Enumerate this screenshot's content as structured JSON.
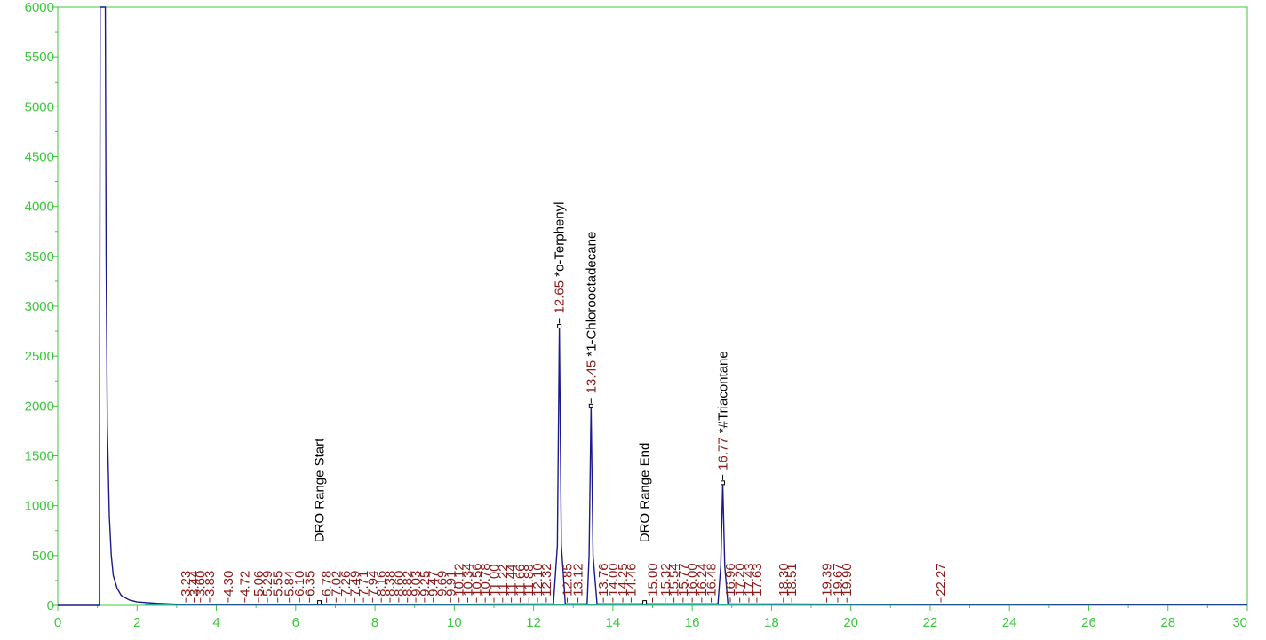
{
  "chart_data": {
    "type": "line",
    "title": "",
    "xlabel": "",
    "ylabel": "",
    "xlim": [
      0,
      30
    ],
    "ylim": [
      0,
      6000
    ],
    "x_ticks": [
      "0",
      "2",
      "4",
      "6",
      "8",
      "10",
      "12",
      "14",
      "16",
      "18",
      "20",
      "22",
      "24",
      "26",
      "28",
      "30"
    ],
    "y_ticks": [
      "0",
      "500",
      "1000",
      "1500",
      "2000",
      "2500",
      "3000",
      "3500",
      "4000",
      "4500",
      "5000",
      "5500",
      "6000"
    ],
    "grid": false,
    "colors": {
      "axis": "#3cc83c",
      "trace": "#1a1a8c",
      "baseline": "#20a8a0",
      "rt_label": "#8b1a1a",
      "name_label": "#000000"
    },
    "series": [
      {
        "values": [
          {
            "x": 0.0,
            "y": 0
          },
          {
            "x": 1.05,
            "y": 0
          },
          {
            "x": 1.07,
            "y": 6000
          },
          {
            "x": 1.2,
            "y": 6000
          },
          {
            "x": 1.22,
            "y": 3500
          },
          {
            "x": 1.25,
            "y": 1800
          },
          {
            "x": 1.3,
            "y": 900
          },
          {
            "x": 1.35,
            "y": 500
          },
          {
            "x": 1.4,
            "y": 300
          },
          {
            "x": 1.5,
            "y": 170
          },
          {
            "x": 1.6,
            "y": 100
          },
          {
            "x": 1.8,
            "y": 55
          },
          {
            "x": 2.0,
            "y": 35
          },
          {
            "x": 2.5,
            "y": 20
          },
          {
            "x": 3.0,
            "y": 12
          },
          {
            "x": 4.0,
            "y": 10
          },
          {
            "x": 6.0,
            "y": 10
          },
          {
            "x": 10.0,
            "y": 12
          },
          {
            "x": 12.5,
            "y": 15
          },
          {
            "x": 12.6,
            "y": 600
          },
          {
            "x": 12.65,
            "y": 2800
          },
          {
            "x": 12.7,
            "y": 600
          },
          {
            "x": 12.8,
            "y": 15
          },
          {
            "x": 13.35,
            "y": 15
          },
          {
            "x": 13.4,
            "y": 500
          },
          {
            "x": 13.45,
            "y": 2000
          },
          {
            "x": 13.5,
            "y": 500
          },
          {
            "x": 13.6,
            "y": 15
          },
          {
            "x": 16.65,
            "y": 15
          },
          {
            "x": 16.72,
            "y": 400
          },
          {
            "x": 16.77,
            "y": 1230
          },
          {
            "x": 16.82,
            "y": 400
          },
          {
            "x": 16.9,
            "y": 15
          },
          {
            "x": 20.0,
            "y": 12
          },
          {
            "x": 22.3,
            "y": 10
          },
          {
            "x": 30.0,
            "y": 8
          }
        ]
      }
    ],
    "named_peaks": [
      {
        "rt": "12.65",
        "x": 12.65,
        "y": 2800,
        "name": "*o-Terphenyl"
      },
      {
        "rt": "13.45",
        "x": 13.45,
        "y": 2000,
        "name": "*1-Chlorooctadecane"
      },
      {
        "rt": "16.77",
        "x": 16.77,
        "y": 1230,
        "name": "*#Triacontane"
      }
    ],
    "range_markers": [
      {
        "x": 6.6,
        "name": "DRO Range Start"
      },
      {
        "x": 14.8,
        "name": "DRO Range End"
      }
    ],
    "peak_labels": [
      {
        "x": 3.23,
        "rt": "3.23"
      },
      {
        "x": 3.44,
        "rt": "3.44"
      },
      {
        "x": 3.6,
        "rt": "3.60"
      },
      {
        "x": 3.83,
        "rt": "3.83"
      },
      {
        "x": 4.3,
        "rt": "4.30"
      },
      {
        "x": 4.72,
        "rt": "4.72"
      },
      {
        "x": 5.06,
        "rt": "5.06"
      },
      {
        "x": 5.29,
        "rt": "5.29"
      },
      {
        "x": 5.55,
        "rt": "5.55"
      },
      {
        "x": 5.84,
        "rt": "5.84"
      },
      {
        "x": 6.1,
        "rt": "6.10"
      },
      {
        "x": 6.35,
        "rt": "6.35"
      },
      {
        "x": 6.78,
        "rt": "6.78"
      },
      {
        "x": 7.02,
        "rt": "7.02"
      },
      {
        "x": 7.26,
        "rt": "7.26"
      },
      {
        "x": 7.49,
        "rt": "7.49"
      },
      {
        "x": 7.71,
        "rt": "7.71"
      },
      {
        "x": 7.94,
        "rt": "7.94"
      },
      {
        "x": 8.16,
        "rt": "8.16"
      },
      {
        "x": 8.38,
        "rt": "8.38"
      },
      {
        "x": 8.6,
        "rt": "8.60"
      },
      {
        "x": 8.82,
        "rt": "8.82"
      },
      {
        "x": 9.03,
        "rt": "9.03"
      },
      {
        "x": 9.25,
        "rt": "9.25"
      },
      {
        "x": 9.47,
        "rt": "9.47"
      },
      {
        "x": 9.69,
        "rt": "9.69"
      },
      {
        "x": 9.91,
        "rt": "9.91"
      },
      {
        "x": 10.12,
        "rt": "10.12"
      },
      {
        "x": 10.34,
        "rt": "10.34"
      },
      {
        "x": 10.56,
        "rt": "10.56"
      },
      {
        "x": 10.78,
        "rt": "10.78"
      },
      {
        "x": 11.0,
        "rt": "11.00"
      },
      {
        "x": 11.22,
        "rt": "11.22"
      },
      {
        "x": 11.44,
        "rt": "11.44"
      },
      {
        "x": 11.66,
        "rt": "11.66"
      },
      {
        "x": 11.88,
        "rt": "11.88"
      },
      {
        "x": 12.1,
        "rt": "12.10"
      },
      {
        "x": 12.32,
        "rt": "12.32"
      },
      {
        "x": 12.85,
        "rt": "12.85"
      },
      {
        "x": 13.12,
        "rt": "13.12"
      },
      {
        "x": 13.76,
        "rt": "13.76"
      },
      {
        "x": 14.0,
        "rt": "14.00"
      },
      {
        "x": 14.25,
        "rt": "14.25"
      },
      {
        "x": 14.46,
        "rt": "14.46"
      },
      {
        "x": 15.0,
        "rt": "15.00"
      },
      {
        "x": 15.32,
        "rt": "15.32"
      },
      {
        "x": 15.54,
        "rt": "15.54"
      },
      {
        "x": 15.77,
        "rt": "15.77"
      },
      {
        "x": 16.0,
        "rt": "16.00"
      },
      {
        "x": 16.24,
        "rt": "16.24"
      },
      {
        "x": 16.48,
        "rt": "16.48"
      },
      {
        "x": 16.96,
        "rt": "16.96"
      },
      {
        "x": 17.2,
        "rt": "17.20"
      },
      {
        "x": 17.43,
        "rt": "17.43"
      },
      {
        "x": 17.63,
        "rt": "17.63"
      },
      {
        "x": 18.3,
        "rt": "18.30"
      },
      {
        "x": 18.51,
        "rt": "18.51"
      },
      {
        "x": 19.39,
        "rt": "19.39"
      },
      {
        "x": 19.67,
        "rt": "19.67"
      },
      {
        "x": 19.9,
        "rt": "19.90"
      },
      {
        "x": 22.27,
        "rt": "22.27"
      }
    ]
  }
}
